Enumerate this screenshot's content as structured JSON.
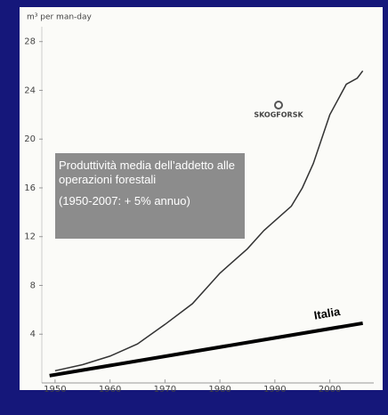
{
  "chart_data": {
    "type": "line",
    "y_axis_label": "m³ per man-day",
    "logo": "SKOGFORSK",
    "annotations": [
      "Produttività media dell’addetto alle operazioni forestali",
      "(1950-2007: + 5% annuo)"
    ],
    "xlim": [
      1945,
      2008
    ],
    "xticks": [
      1950,
      1960,
      1970,
      1980,
      1990,
      2000
    ],
    "ylim": [
      0,
      29
    ],
    "yticks": [
      4,
      8,
      12,
      16,
      20,
      24,
      28
    ],
    "series": [
      {
        "color": "#333333",
        "x": [
          1950,
          1955,
          1960,
          1965,
          1970,
          1975,
          1978,
          1980,
          1985,
          1988,
          1990,
          1993,
          1995,
          1997,
          2000,
          2003,
          2005,
          2006
        ],
        "values": [
          1.0,
          1.5,
          2.2,
          3.2,
          4.8,
          6.5,
          8,
          9,
          11,
          12.5,
          13.3,
          14.5,
          16,
          18,
          22,
          24.5,
          25,
          25.6
        ]
      },
      {
        "name": "Italia",
        "color": "#000000",
        "x": [
          1949,
          2006
        ],
        "values": [
          0.6,
          4.9
        ]
      }
    ]
  }
}
